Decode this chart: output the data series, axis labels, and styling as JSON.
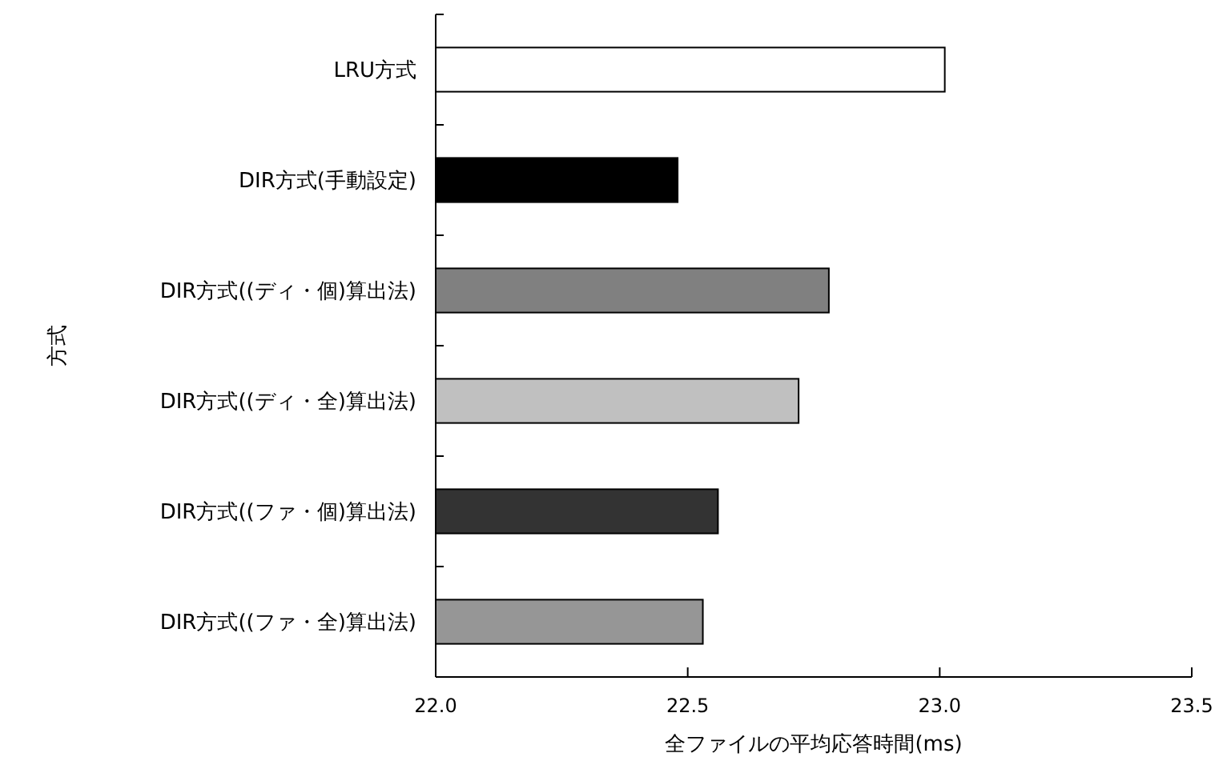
{
  "chart_data": {
    "type": "bar",
    "orientation": "horizontal",
    "xlabel": "全ファイルの平均応答時間(ms)",
    "ylabel": "方式",
    "categories": [
      "LRU方式",
      "DIR方式(手動設定)",
      "DIR方式((ディ・個)算出法)",
      "DIR方式((ディ・全)算出法)",
      "DIR方式((ファ・個)算出法)",
      "DIR方式((ファ・全)算出法)"
    ],
    "values": [
      23.01,
      22.48,
      22.78,
      22.72,
      22.56,
      22.53
    ],
    "colors": [
      "#ffffff",
      "#000000",
      "#808080",
      "#c0c0c0",
      "#333333",
      "#969696"
    ],
    "xlim": [
      22.0,
      23.5
    ],
    "xticks": [
      {
        "value": 22.0,
        "label": "22.0"
      },
      {
        "value": 22.5,
        "label": "22.5"
      },
      {
        "value": 23.0,
        "label": "23.0"
      },
      {
        "value": 23.5,
        "label": "23.5"
      }
    ]
  }
}
